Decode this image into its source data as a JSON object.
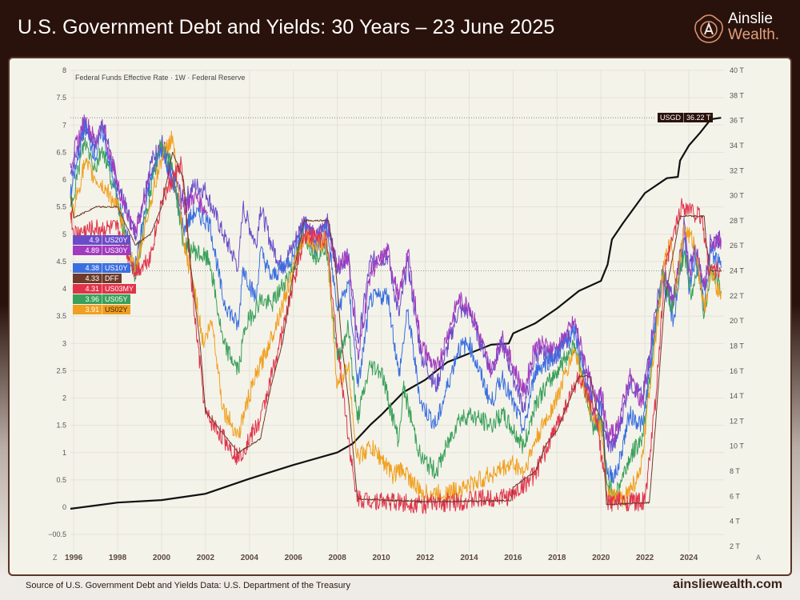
{
  "header": {
    "title": "U.S. Government Debt and Yields: 30 Years – 23 June 2025"
  },
  "logo": {
    "line1": "Ainslie",
    "line2": "Wealth."
  },
  "footer": {
    "source": "Source of U.S. Government Debt and Yields Data: U.S. Department of the Treasury",
    "url": "ainsliewealth.com"
  },
  "chart_data": {
    "type": "line",
    "subtitle": "Federal Funds Effective Rate · 1W · Federal Reserve",
    "x_ticks": [
      "1996",
      "1998",
      "2000",
      "2002",
      "2004",
      "2006",
      "2008",
      "2010",
      "2012",
      "2014",
      "2016",
      "2018",
      "2020",
      "2022",
      "2024"
    ],
    "xlim": [
      1995.85,
      2025.6
    ],
    "left_axis": {
      "ylim": [
        -0.5,
        8
      ],
      "ticks": [
        "-0.5",
        "0",
        "0.5",
        "1",
        "1.5",
        "2",
        "2.5",
        "3",
        "3.5",
        "4",
        "4.5",
        "5",
        "5.5",
        "6",
        "6.5",
        "7",
        "7.5",
        "8"
      ],
      "corner_label": "Z"
    },
    "right_axis": {
      "ylim": [
        2,
        40
      ],
      "ticks": [
        "2 T",
        "4 T",
        "6 T",
        "8 T",
        "10 T",
        "12 T",
        "14 T",
        "16 T",
        "18 T",
        "20 T",
        "22 T",
        "24 T",
        "26 T",
        "28 T",
        "30 T",
        "32 T",
        "34 T",
        "36 T",
        "38 T",
        "40 T"
      ],
      "corner_label": "A"
    },
    "grid": true,
    "series": [
      {
        "name": "US20Y",
        "last": "4.9",
        "color": "#6a4cc9",
        "axis": "left",
        "x": [
          1995.85,
          1996.5,
          1997,
          1997.3,
          1998,
          1998.8,
          1999.5,
          2000,
          2000.5,
          2001,
          2001.5,
          2002,
          2002.8,
          2003.5,
          2003.7,
          2004.3,
          2004.5,
          2005,
          2005.5,
          2006,
          2006.5,
          2007,
          2007.5,
          2008,
          2008.5,
          2008.95,
          2009.5,
          2010.3,
          2010.8,
          2011.2,
          2011.8,
          2012.5,
          2013.5,
          2014,
          2015,
          2015.5,
          2016.5,
          2017,
          2018,
          2018.8,
          2019.7,
          2020,
          2020.3,
          2020.7,
          2021.3,
          2021.9,
          2022.4,
          2022.8,
          2023.3,
          2023.8,
          2024,
          2024.3,
          2024.7,
          2025,
          2025.47
        ],
        "y": [
          6.1,
          7.0,
          6.6,
          7.1,
          5.9,
          5.0,
          6.3,
          6.7,
          6.1,
          5.6,
          5.9,
          5.8,
          5.0,
          4.4,
          5.5,
          4.8,
          5.5,
          4.8,
          4.4,
          4.8,
          5.3,
          4.9,
          5.3,
          4.4,
          4.6,
          3.0,
          4.5,
          4.6,
          3.5,
          4.5,
          2.8,
          2.2,
          3.6,
          3.6,
          2.5,
          3.0,
          1.8,
          2.8,
          2.8,
          3.3,
          1.8,
          2.0,
          1.1,
          1.2,
          2.3,
          2.0,
          3.4,
          4.3,
          3.8,
          5.2,
          4.3,
          4.8,
          4.0,
          4.9,
          4.9
        ]
      },
      {
        "name": "US30Y",
        "last": "4.89",
        "color": "#a13bbf",
        "axis": "left",
        "x": [
          1995.85,
          1996.5,
          1997,
          1997.3,
          1998,
          1998.8,
          1999.5,
          2000,
          2000.5,
          2001,
          2001.5,
          2002.1,
          null,
          2006.1,
          2006.5,
          2007,
          2007.5,
          2008,
          2008.5,
          2008.95,
          2009.5,
          2010.3,
          2010.8,
          2011.2,
          2011.8,
          2012.5,
          2013.5,
          2014,
          2015,
          2015.5,
          2016.5,
          2017,
          2018,
          2018.8,
          2019.7,
          2020,
          2020.3,
          2020.7,
          2021.3,
          2021.9,
          2022.4,
          2022.8,
          2023.3,
          2023.8,
          2024,
          2024.3,
          2024.7,
          2025,
          2025.47
        ],
        "y": [
          6.3,
          7.1,
          6.7,
          7.0,
          5.9,
          5.0,
          6.1,
          6.6,
          5.9,
          5.5,
          5.7,
          5.4,
          null,
          4.6,
          5.2,
          4.8,
          5.2,
          4.4,
          4.6,
          2.7,
          4.3,
          4.7,
          3.8,
          4.7,
          3.0,
          2.5,
          3.8,
          3.7,
          2.5,
          3.1,
          2.1,
          3.0,
          2.9,
          3.4,
          2.0,
          2.2,
          1.3,
          1.4,
          2.4,
          1.9,
          3.2,
          4.2,
          3.7,
          5.1,
          4.2,
          4.7,
          4.0,
          4.8,
          4.89
        ]
      },
      {
        "name": "US10Y",
        "last": "4.38",
        "color": "#3a6fe0",
        "axis": "left",
        "x": [
          1995.85,
          1996.5,
          1997,
          1997.3,
          1998,
          1998.8,
          1999.5,
          2000,
          2000.5,
          2001,
          2001.5,
          2002.2,
          2002.8,
          2003.5,
          2003.7,
          2004.3,
          2004.5,
          2005,
          2006,
          2006.5,
          2007,
          2007.5,
          2008,
          2008.5,
          2008.95,
          2009.5,
          2010.3,
          2010.8,
          2011.2,
          2011.8,
          2012.5,
          2013.5,
          2014,
          2015,
          2015.5,
          2016.5,
          2017,
          2018,
          2018.8,
          2019.7,
          2020,
          2020.3,
          2020.7,
          2021.3,
          2021.9,
          2022.4,
          2022.8,
          2023.3,
          2023.8,
          2024,
          2024.3,
          2024.7,
          2025,
          2025.47
        ],
        "y": [
          5.7,
          7.0,
          6.4,
          6.9,
          5.6,
          4.4,
          6.0,
          6.6,
          6.0,
          5.1,
          5.4,
          5.2,
          3.8,
          3.3,
          4.4,
          3.8,
          4.7,
          4.2,
          4.6,
          5.2,
          4.7,
          5.2,
          3.6,
          4.1,
          2.2,
          3.8,
          3.9,
          2.4,
          3.6,
          1.9,
          1.5,
          2.9,
          3.0,
          1.9,
          2.4,
          1.4,
          2.5,
          2.8,
          3.2,
          1.5,
          1.8,
          0.6,
          0.6,
          1.7,
          1.5,
          3.1,
          4.2,
          3.4,
          4.9,
          3.9,
          4.6,
          3.7,
          4.7,
          4.38
        ]
      },
      {
        "name": "DFF",
        "last": "4.33",
        "color": "#6e3b2a",
        "axis": "left",
        "x": [
          1995.85,
          1996,
          1997,
          1998,
          1998.8,
          1999.5,
          2000,
          2000.5,
          2001,
          2001.3,
          2001.75,
          2002,
          2002.9,
          2003.5,
          2004.5,
          2005,
          2005.5,
          2006,
          2006.5,
          2007.6,
          2007.9,
          2008.2,
          2008.5,
          2008.9,
          2009,
          2012,
          2015.9,
          2016,
          2017,
          2017.5,
          2018,
          2018.5,
          2019,
          2019.5,
          2019.8,
          2020.1,
          2020.25,
          2022.2,
          2022.5,
          2022.9,
          2023.5,
          2023.6,
          2024.7,
          2024.8,
          2025,
          2025.47
        ],
        "y": [
          5.7,
          5.3,
          5.5,
          5.5,
          4.8,
          5.0,
          5.5,
          6.5,
          6.0,
          4.5,
          3.0,
          1.75,
          1.3,
          1.0,
          1.25,
          2.25,
          3.0,
          4.3,
          5.25,
          5.25,
          4.5,
          3.0,
          2.0,
          0.2,
          0.15,
          0.1,
          0.12,
          0.37,
          0.65,
          1.15,
          1.4,
          1.9,
          2.4,
          2.4,
          1.8,
          1.55,
          0.05,
          0.08,
          1.6,
          3.8,
          5.1,
          5.33,
          5.33,
          4.8,
          4.33,
          4.33
        ]
      },
      {
        "name": "US03MY",
        "last": "4.31",
        "color": "#e0334a",
        "axis": "left",
        "x": [
          1995.85,
          1996,
          1997,
          1998,
          1998.8,
          1999.5,
          2000,
          2000.9,
          2001.5,
          2002,
          2003.5,
          2004.5,
          2005.5,
          2006.5,
          2007.5,
          2008,
          2008.8,
          2009,
          2012,
          2015.9,
          2017,
          2018,
          2019,
          2019.8,
          2020.3,
          2022,
          2022.5,
          2022.9,
          2023.3,
          2023.7,
          2024.6,
          2024.9,
          2025.47
        ],
        "y": [
          5.4,
          5.0,
          5.1,
          5.1,
          4.3,
          4.6,
          5.6,
          6.3,
          3.5,
          1.7,
          0.9,
          1.6,
          3.2,
          5.0,
          4.9,
          3.0,
          0.3,
          0.15,
          0.05,
          0.2,
          0.6,
          1.5,
          2.4,
          1.6,
          0.1,
          0.1,
          2.0,
          4.3,
          5.0,
          5.55,
          5.3,
          4.4,
          4.31
        ]
      },
      {
        "name": "US05Y",
        "last": "3.96",
        "color": "#3aa05a",
        "axis": "left",
        "x": [
          1995.85,
          1996.5,
          1997,
          1997.3,
          1998,
          1998.8,
          1999.5,
          2000,
          2000.5,
          2001,
          2001.5,
          2002.2,
          2002.8,
          2003.5,
          2003.8,
          2004.5,
          2005,
          2006,
          2006.5,
          2007,
          2007.5,
          2008,
          2008.5,
          2008.9,
          2009.5,
          2010,
          2010.8,
          2011,
          2011.8,
          2012.5,
          2013.5,
          2014,
          2015,
          2015.5,
          2016.5,
          2017,
          2018,
          2018.8,
          2019.7,
          2020,
          2020.3,
          2020.7,
          2021.3,
          2021.9,
          2022.4,
          2022.8,
          2023.2,
          2023.8,
          2024.1,
          2024.4,
          2024.7,
          2025,
          2025.47
        ],
        "y": [
          5.5,
          6.7,
          6.2,
          6.6,
          5.6,
          4.2,
          5.8,
          6.7,
          6.2,
          4.8,
          4.7,
          4.5,
          3.0,
          2.5,
          3.3,
          3.8,
          3.7,
          4.4,
          5.0,
          4.6,
          4.8,
          2.7,
          3.3,
          1.6,
          2.6,
          2.5,
          1.2,
          2.2,
          0.9,
          0.65,
          1.6,
          1.7,
          1.5,
          1.7,
          1.1,
          1.9,
          2.5,
          3.0,
          1.4,
          1.6,
          0.4,
          0.25,
          0.9,
          1.3,
          3.0,
          4.3,
          3.6,
          4.7,
          3.8,
          4.5,
          3.5,
          4.4,
          3.96
        ]
      },
      {
        "name": "US02Y",
        "last": "3.91",
        "color": "#f0a020",
        "axis": "left",
        "x": [
          1995.85,
          1996.5,
          1997,
          1997.5,
          1998,
          1998.8,
          1999.5,
          2000,
          2000.5,
          2001,
          2001.5,
          2001.9,
          2002.3,
          2002.8,
          2003.5,
          2003.8,
          2004.3,
          2004.9,
          2005.5,
          2006.5,
          2007,
          2007.5,
          2008,
          2008.5,
          2008.9,
          2009.5,
          2010,
          2010.5,
          2011,
          2011.8,
          2013,
          2014,
          2015,
          2016,
          2016.5,
          2017,
          2018,
          2018.8,
          2019.5,
          2020,
          2020.3,
          2021,
          2021.8,
          2022.3,
          2022.9,
          2023.2,
          2023.4,
          2023.8,
          2024.3,
          2024.7,
          2024.95,
          2025.47
        ],
        "y": [
          5.2,
          6.3,
          6.0,
          5.8,
          5.5,
          4.3,
          5.6,
          6.4,
          6.8,
          4.8,
          4.0,
          3.0,
          3.4,
          1.8,
          1.3,
          1.8,
          2.4,
          3.0,
          3.7,
          5.0,
          4.8,
          4.9,
          2.2,
          2.6,
          0.9,
          1.1,
          0.9,
          0.6,
          0.7,
          0.25,
          0.25,
          0.4,
          0.6,
          0.8,
          0.65,
          1.2,
          2.0,
          2.9,
          1.8,
          1.4,
          0.2,
          0.15,
          0.6,
          2.5,
          4.5,
          4.9,
          4.0,
          5.1,
          4.8,
          3.6,
          4.3,
          3.91
        ]
      },
      {
        "name": "USGD",
        "last": "36.22 T",
        "color": "#111111",
        "axis": "right",
        "x": [
          1995.85,
          1998,
          2000,
          2002,
          2004,
          2006,
          2008,
          2008.7,
          2009.5,
          2010,
          2011,
          2012,
          2013,
          2014,
          2015,
          2015.8,
          2016,
          2017,
          2018,
          2019,
          2020,
          2020.3,
          2020.5,
          2021,
          2022,
          2023,
          2023.5,
          2023.6,
          2024,
          2024.5,
          2025,
          2025.47
        ],
        "y": [
          5.0,
          5.5,
          5.7,
          6.2,
          7.4,
          8.5,
          9.5,
          10.2,
          11.7,
          12.5,
          14.3,
          15.3,
          16.7,
          17.4,
          18.1,
          18.2,
          19.0,
          19.8,
          21.0,
          22.4,
          23.2,
          24.5,
          26.5,
          27.8,
          30.2,
          31.4,
          31.5,
          32.8,
          34.0,
          35.0,
          36.1,
          36.22
        ]
      }
    ]
  }
}
